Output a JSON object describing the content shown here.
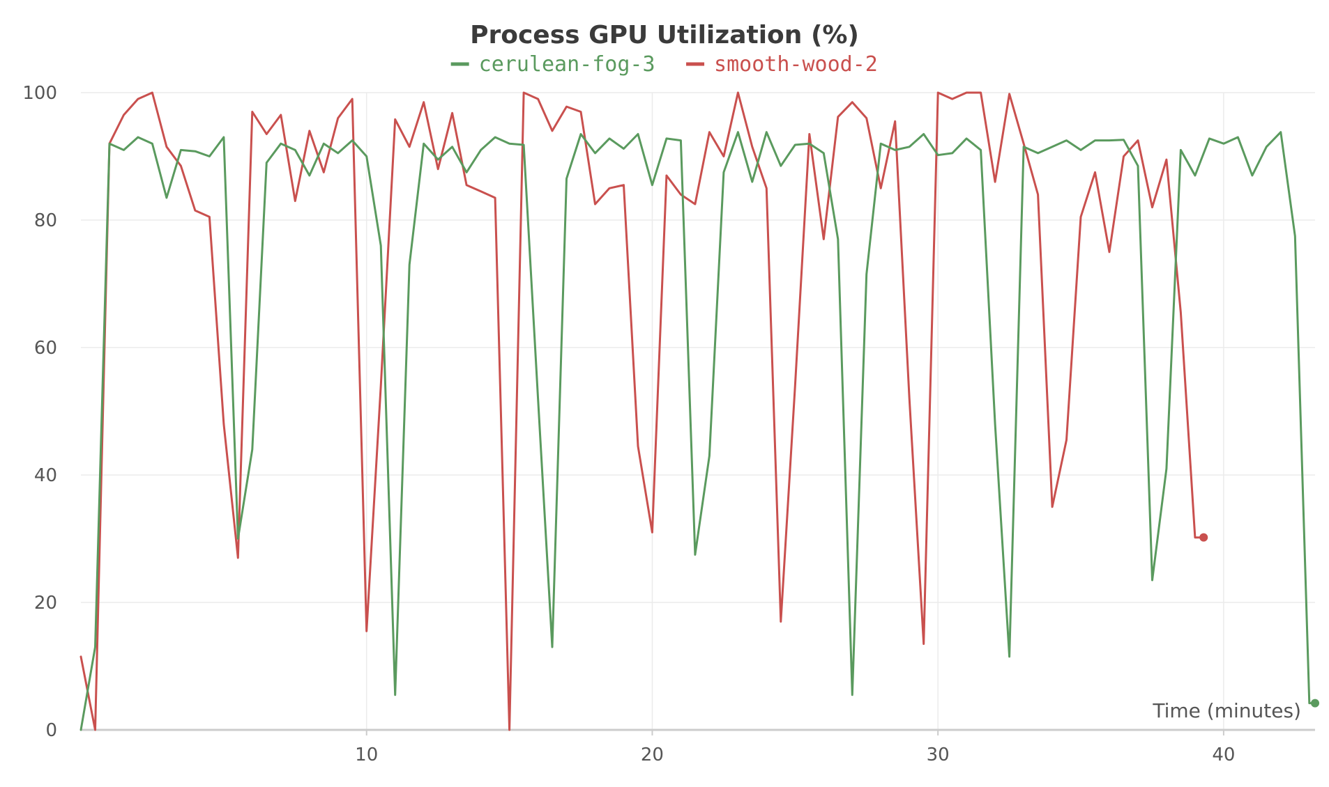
{
  "chart_data": {
    "type": "line",
    "title": "Process GPU Utilization (%)",
    "xlabel": "Time (minutes)",
    "ylabel": "",
    "xlim": [
      0,
      43.2
    ],
    "ylim": [
      0,
      100
    ],
    "x_ticks": [
      10,
      20,
      30,
      40
    ],
    "y_ticks": [
      0,
      20,
      40,
      60,
      80,
      100
    ],
    "grid": true,
    "legend_position": "top-center",
    "series": [
      {
        "name": "cerulean-fog-3",
        "color": "#5a9a5e",
        "end_marker": true,
        "x": [
          0.0,
          0.5,
          1.0,
          1.5,
          2.0,
          2.5,
          3.0,
          3.5,
          4.0,
          4.5,
          5.0,
          5.5,
          6.0,
          6.5,
          7.0,
          7.5,
          8.0,
          8.5,
          9.0,
          9.5,
          10.0,
          10.5,
          11.0,
          11.5,
          12.0,
          12.5,
          13.0,
          13.5,
          14.0,
          14.5,
          15.0,
          15.5,
          16.0,
          16.5,
          17.0,
          17.5,
          18.0,
          18.5,
          19.0,
          19.5,
          20.0,
          20.5,
          21.0,
          21.5,
          22.0,
          22.5,
          23.0,
          23.5,
          24.0,
          24.5,
          25.0,
          25.5,
          26.0,
          26.5,
          27.0,
          27.5,
          28.0,
          28.5,
          29.0,
          29.5,
          30.0,
          30.5,
          31.0,
          31.5,
          32.0,
          32.5,
          33.0,
          33.5,
          34.0,
          34.5,
          35.0,
          35.5,
          36.0,
          36.5,
          37.0,
          37.5,
          38.0,
          38.5,
          39.0,
          39.5,
          40.0,
          40.5,
          41.0,
          41.5,
          42.0,
          42.5,
          43.0,
          43.2
        ],
        "y": [
          0,
          13,
          92,
          91,
          93,
          92,
          83.5,
          91,
          90.8,
          90,
          93,
          30,
          44,
          89,
          92,
          91,
          87,
          92,
          90.5,
          92.5,
          90,
          76,
          5.5,
          73,
          92,
          89.5,
          91.5,
          87.5,
          91,
          93,
          92,
          91.8,
          52,
          13,
          86.5,
          93.5,
          90.5,
          92.8,
          91.2,
          93.5,
          85.5,
          92.8,
          92.5,
          27.5,
          43,
          87.5,
          93.8,
          86,
          93.8,
          88.5,
          91.8,
          92,
          90.5,
          77,
          5.5,
          71.5,
          92,
          91,
          91.5,
          93.5,
          90.2,
          90.5,
          92.8,
          91,
          48,
          11.5,
          91.5,
          90.5,
          91.5,
          92.5,
          91,
          92.5,
          92.5,
          92.6,
          88.5,
          23.5,
          41,
          91,
          87,
          92.8,
          92,
          93,
          87,
          91.5,
          93.8,
          77.5,
          4.2,
          4.2
        ]
      },
      {
        "name": "smooth-wood-2",
        "color": "#c9504e",
        "end_marker": true,
        "x": [
          0.0,
          0.5,
          1.0,
          1.5,
          2.0,
          2.5,
          3.0,
          3.5,
          4.0,
          4.5,
          5.0,
          5.5,
          6.0,
          6.5,
          7.0,
          7.5,
          8.0,
          8.5,
          9.0,
          9.5,
          10.0,
          10.5,
          11.0,
          11.5,
          12.0,
          12.5,
          13.0,
          13.5,
          14.0,
          14.5,
          15.0,
          15.5,
          16.0,
          16.5,
          17.0,
          17.5,
          18.0,
          18.5,
          19.0,
          19.5,
          20.0,
          20.5,
          21.0,
          21.5,
          22.0,
          22.5,
          23.0,
          23.5,
          24.0,
          24.5,
          25.0,
          25.5,
          26.0,
          26.5,
          27.0,
          27.5,
          28.0,
          28.5,
          29.0,
          29.5,
          30.0,
          30.5,
          31.0,
          31.5,
          32.0,
          32.5,
          33.0,
          33.5,
          34.0,
          34.5,
          35.0,
          35.5,
          36.0,
          36.5,
          37.0,
          37.5,
          38.0,
          38.5,
          39.0,
          39.3
        ],
        "y": [
          11.5,
          0,
          92,
          96.5,
          99,
          100,
          91.5,
          88.5,
          81.5,
          80.5,
          48,
          27,
          97,
          93.5,
          96.5,
          83,
          94,
          87.5,
          96,
          99,
          15.5,
          54,
          95.8,
          91.5,
          98.5,
          88,
          96.8,
          85.5,
          84.5,
          83.5,
          0,
          100,
          99,
          94,
          97.8,
          97,
          82.5,
          85,
          85.5,
          44.5,
          31,
          87,
          84,
          82.5,
          93.8,
          90,
          100,
          91.5,
          85,
          17,
          54,
          93.5,
          77,
          96.2,
          98.5,
          96,
          85,
          95.5,
          52,
          13.5,
          100,
          99,
          100,
          100,
          86,
          99.8,
          92,
          84,
          35,
          45.5,
          80.5,
          87.5,
          75,
          90,
          92.5,
          82,
          89.5,
          65.5,
          30.2,
          30.2
        ]
      }
    ]
  }
}
